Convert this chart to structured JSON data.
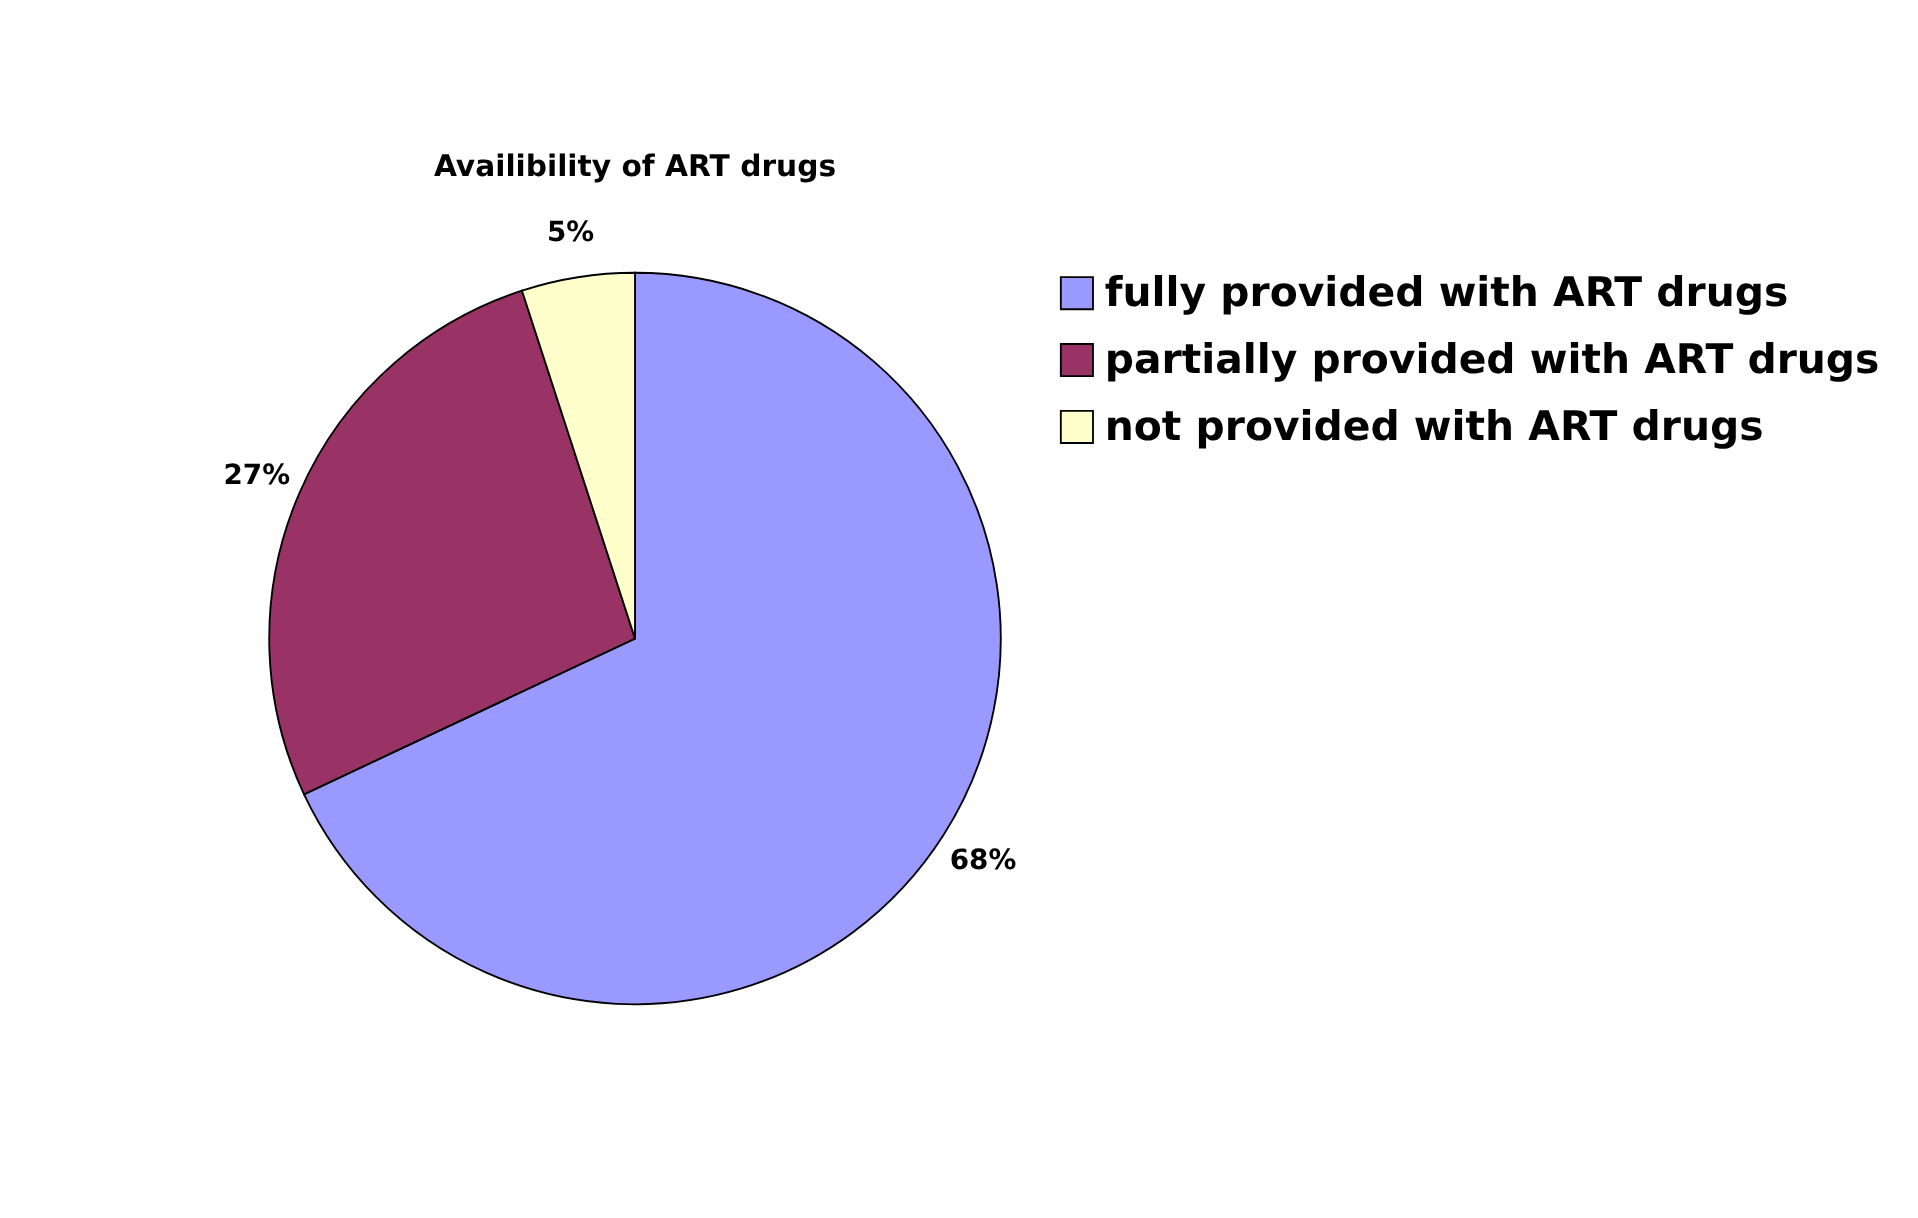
{
  "chart_data": {
    "type": "pie",
    "title": "Availibility of ART drugs",
    "categories": [
      "fully provided with ART drugs",
      "partially provided with ART drugs",
      "not provided with ART drugs"
    ],
    "values": [
      68,
      27,
      5
    ],
    "colors": [
      "#9999ff",
      "#993366",
      "#ffffcc"
    ],
    "value_labels": [
      "68%",
      "27%",
      "5%"
    ],
    "legend": "right"
  }
}
